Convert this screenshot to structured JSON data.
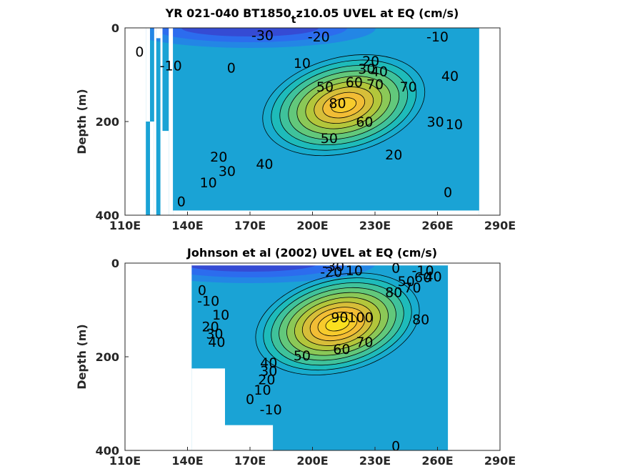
{
  "chart_data": [
    {
      "type": "contour",
      "title": "YR 021-040 BT1850",
      "title_sub": "t",
      "title_tail": "z10.05 UVEL at EQ (cm/s)",
      "ylabel": "Depth (m)",
      "xticks": [
        "110E",
        "140E",
        "170E",
        "200E",
        "230E",
        "260E",
        "290E"
      ],
      "yticks": [
        "0",
        "200",
        "400"
      ],
      "xlim": [
        110,
        290
      ],
      "ylim": [
        0,
        400
      ],
      "field": {
        "core_x": 215,
        "core_y": 165,
        "max": 90,
        "surface": -30
      },
      "contour_labels": [
        {
          "x": 176,
          "y": 15,
          "text": "-30"
        },
        {
          "x": 203,
          "y": 18,
          "text": "-20"
        },
        {
          "x": 260,
          "y": 18,
          "text": "-10"
        },
        {
          "x": 117,
          "y": 50,
          "text": "0"
        },
        {
          "x": 132,
          "y": 80,
          "text": "-10"
        },
        {
          "x": 161,
          "y": 85,
          "text": "0"
        },
        {
          "x": 195,
          "y": 75,
          "text": "10"
        },
        {
          "x": 228,
          "y": 70,
          "text": "20"
        },
        {
          "x": 226,
          "y": 87,
          "text": "30"
        },
        {
          "x": 232,
          "y": 92,
          "text": "40"
        },
        {
          "x": 206,
          "y": 125,
          "text": "50"
        },
        {
          "x": 220,
          "y": 115,
          "text": "60"
        },
        {
          "x": 230,
          "y": 120,
          "text": "70"
        },
        {
          "x": 246,
          "y": 125,
          "text": "70"
        },
        {
          "x": 212,
          "y": 160,
          "text": "80"
        },
        {
          "x": 266,
          "y": 102,
          "text": "40"
        },
        {
          "x": 259,
          "y": 200,
          "text": "30"
        },
        {
          "x": 268,
          "y": 205,
          "text": "10"
        },
        {
          "x": 225,
          "y": 200,
          "text": "60"
        },
        {
          "x": 208,
          "y": 235,
          "text": "50"
        },
        {
          "x": 239,
          "y": 270,
          "text": "20"
        },
        {
          "x": 177,
          "y": 290,
          "text": "40"
        },
        {
          "x": 155,
          "y": 275,
          "text": "20"
        },
        {
          "x": 159,
          "y": 305,
          "text": "30"
        },
        {
          "x": 150,
          "y": 330,
          "text": "10"
        },
        {
          "x": 137,
          "y": 370,
          "text": "0"
        },
        {
          "x": 265,
          "y": 350,
          "text": "0"
        }
      ]
    },
    {
      "type": "contour",
      "title": "Johnson et al (2002) UVEL at EQ (cm/s)",
      "ylabel": "Depth (m)",
      "xticks": [
        "110E",
        "140E",
        "170E",
        "200E",
        "230E",
        "260E",
        "290E"
      ],
      "yticks": [
        "0",
        "200",
        "400"
      ],
      "xlim": [
        110,
        290
      ],
      "ylim": [
        0,
        400
      ],
      "field": {
        "core_x": 212,
        "core_y": 130,
        "max": 100,
        "surface": -30
      },
      "contour_labels": [
        {
          "x": 210,
          "y": 6,
          "text": "-30"
        },
        {
          "x": 209,
          "y": 18,
          "text": "-20"
        },
        {
          "x": 220,
          "y": 15,
          "text": "10"
        },
        {
          "x": 240,
          "y": 10,
          "text": "0"
        },
        {
          "x": 253,
          "y": 15,
          "text": "-10"
        },
        {
          "x": 245,
          "y": 38,
          "text": "50"
        },
        {
          "x": 253,
          "y": 30,
          "text": "60"
        },
        {
          "x": 258,
          "y": 28,
          "text": "40"
        },
        {
          "x": 239,
          "y": 62,
          "text": "80"
        },
        {
          "x": 248,
          "y": 52,
          "text": "70"
        },
        {
          "x": 147,
          "y": 57,
          "text": "0"
        },
        {
          "x": 150,
          "y": 80,
          "text": "-10"
        },
        {
          "x": 156,
          "y": 110,
          "text": "10"
        },
        {
          "x": 151,
          "y": 135,
          "text": "20"
        },
        {
          "x": 153,
          "y": 150,
          "text": "30"
        },
        {
          "x": 154,
          "y": 168,
          "text": "40"
        },
        {
          "x": 213,
          "y": 115,
          "text": "90"
        },
        {
          "x": 223,
          "y": 115,
          "text": "100"
        },
        {
          "x": 225,
          "y": 168,
          "text": "70"
        },
        {
          "x": 252,
          "y": 120,
          "text": "80"
        },
        {
          "x": 214,
          "y": 183,
          "text": "60"
        },
        {
          "x": 195,
          "y": 197,
          "text": "50"
        },
        {
          "x": 179,
          "y": 212,
          "text": "40"
        },
        {
          "x": 179,
          "y": 230,
          "text": "30"
        },
        {
          "x": 178,
          "y": 248,
          "text": "20"
        },
        {
          "x": 176,
          "y": 270,
          "text": "10"
        },
        {
          "x": 170,
          "y": 290,
          "text": "0"
        },
        {
          "x": 180,
          "y": 312,
          "text": "-10"
        },
        {
          "x": 240,
          "y": 390,
          "text": "0"
        }
      ]
    }
  ]
}
